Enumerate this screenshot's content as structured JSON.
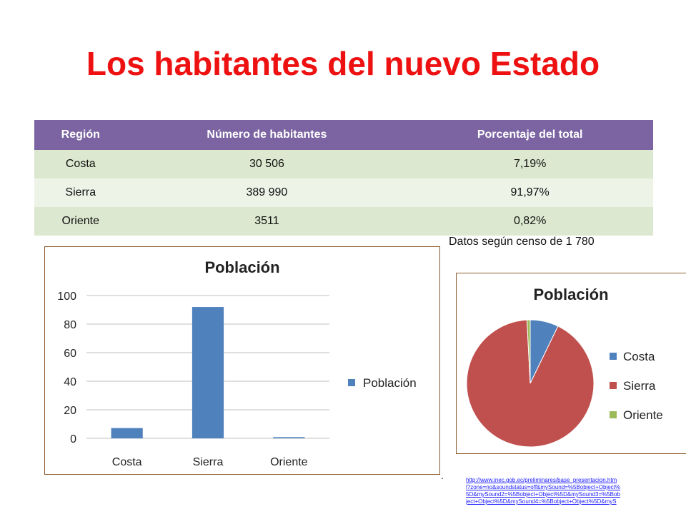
{
  "title": "Los habitantes del nuevo Estado",
  "table": {
    "headers": [
      "Región",
      "Número de habitantes",
      "Porcentaje del total"
    ],
    "rows": [
      [
        "Costa",
        "30 506",
        "7,19%"
      ],
      [
        "Sierra",
        "389 990",
        "91,97%"
      ],
      [
        "Oriente",
        "3511",
        "0,82%"
      ]
    ]
  },
  "note": "Datos según censo de 1 780",
  "dot": ".",
  "link": "http://www.inec.gob.ec/preliminares/base_presentacion.html?zone=no&soundstatus=off&mySound=%5Bobject+Object%5D&mySound2=%5Bobject+Object%5D&mySound3=%5Bobject+Object%5D&mySound4=%5Bobject+Object%5D&myS",
  "colors": {
    "title": "#ee1111",
    "header": "#7b64a1",
    "costa": "#4f81bd",
    "sierra": "#c0504d",
    "oriente": "#9bbb59"
  },
  "chart_data": [
    {
      "type": "bar",
      "title": "Población",
      "categories": [
        "Costa",
        "Sierra",
        "Oriente"
      ],
      "series": [
        {
          "name": "Población",
          "values": [
            7.19,
            91.97,
            0.82
          ]
        }
      ],
      "ylim": [
        0,
        100
      ],
      "yticks": [
        0,
        20,
        40,
        60,
        80,
        100
      ],
      "grid": true,
      "legend": "right"
    },
    {
      "type": "pie",
      "title": "Población",
      "labels": [
        "Costa",
        "Sierra",
        "Oriente"
      ],
      "values": [
        7.19,
        91.97,
        0.82
      ],
      "legend": "right"
    }
  ]
}
